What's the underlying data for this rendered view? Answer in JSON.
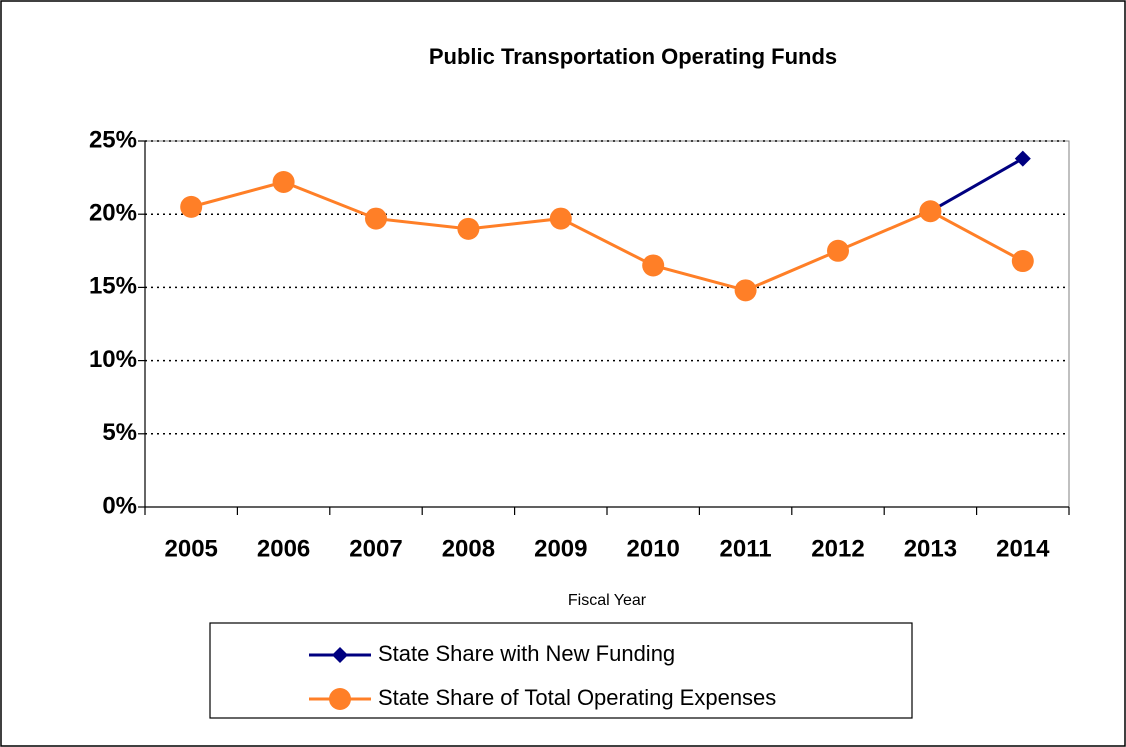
{
  "chart_data": {
    "type": "line",
    "title": "Public Transportation Operating Funds",
    "x_label": "Fiscal Year",
    "categories": [
      "2005",
      "2006",
      "2007",
      "2008",
      "2009",
      "2010",
      "2011",
      "2012",
      "2013",
      "2014"
    ],
    "series": [
      {
        "name": "State Share with New Funding",
        "color": "#000080",
        "marker": "diamond",
        "values": [
          null,
          null,
          null,
          null,
          null,
          null,
          null,
          null,
          20.2,
          23.8
        ]
      },
      {
        "name": "State Share of Total Operating Expenses",
        "color": "#ff7f27",
        "marker": "circle",
        "values": [
          20.5,
          22.2,
          19.7,
          19.0,
          19.7,
          16.5,
          14.8,
          17.5,
          20.2,
          16.8
        ]
      }
    ],
    "ylim": [
      0,
      25
    ],
    "yticks": [
      {
        "value": 0,
        "label": "0%"
      },
      {
        "value": 5,
        "label": "5%"
      },
      {
        "value": 10,
        "label": "10%"
      },
      {
        "value": 15,
        "label": "15%"
      },
      {
        "value": 20,
        "label": "20%"
      },
      {
        "value": 25,
        "label": "25%"
      }
    ],
    "grid": true,
    "legend": "bottom"
  }
}
